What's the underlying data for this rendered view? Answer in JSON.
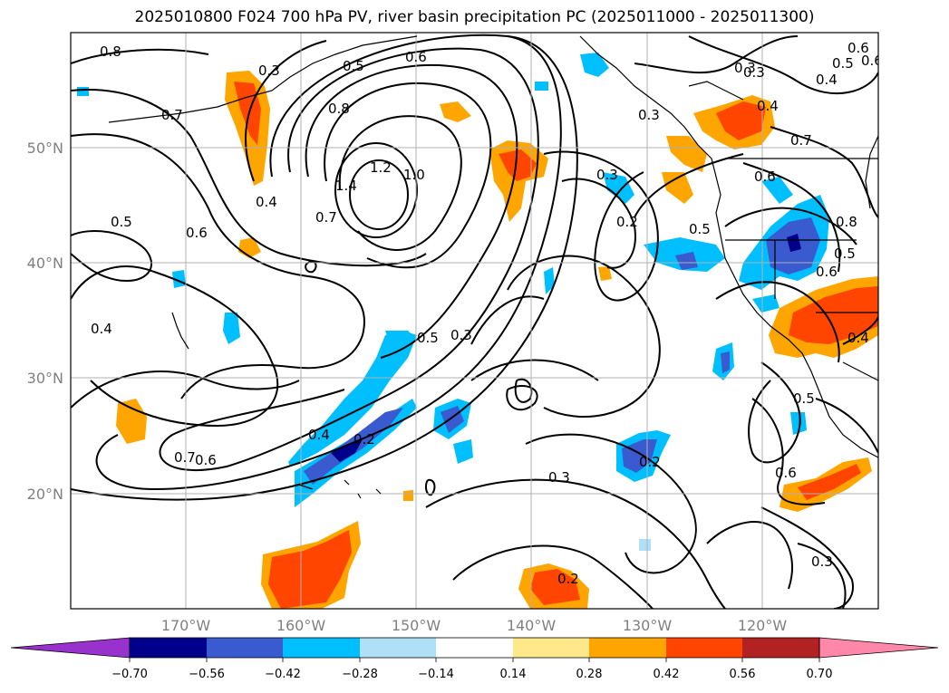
{
  "title": "2025010800 F024 700 hPa PV, river basin precipitation PC (2025011000 - 2025011300)",
  "map": {
    "lat_labels": [
      "50°N",
      "40°N",
      "30°N",
      "20°N"
    ],
    "lon_labels": [
      "170°W",
      "160°W",
      "150°W",
      "140°W",
      "130°W",
      "120°W"
    ],
    "contour_labels": [
      "0.8",
      "0.3",
      "0.5",
      "0.6",
      "0.7",
      "0.8",
      "1.4",
      "1.2",
      "1.0",
      "0.7",
      "0.6",
      "0.5",
      "0.4",
      "0.4",
      "0.3",
      "0.5",
      "0.3",
      "0.2",
      "0.4",
      "0.2",
      "0.7",
      "0.6",
      "0.2",
      "0.3",
      "0.3",
      "0.4",
      "0.6",
      "0.5",
      "0.7",
      "0.6",
      "0.8",
      "0.5",
      "0.4",
      "0.3",
      "0.5",
      "0.6",
      "0.3",
      "0.2",
      "0.6",
      "0.6",
      "0.5",
      "0.4",
      "0.3"
    ]
  },
  "colorbar": {
    "ticks": [
      "−0.70",
      "−0.56",
      "−0.42",
      "−0.28",
      "−0.14",
      "0.14",
      "0.28",
      "0.42",
      "0.56",
      "0.70"
    ],
    "colors": [
      "#9932cc",
      "#00008b",
      "#3a5bd0",
      "#00bfff",
      "#b0e0f8",
      "#ffffff",
      "#ffe88a",
      "#ffa500",
      "#ff4500",
      "#b22222",
      "#ff88aa"
    ]
  }
}
